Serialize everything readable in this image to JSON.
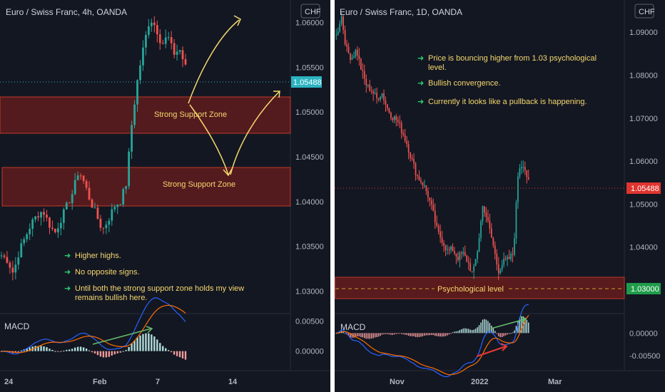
{
  "colors": {
    "background": "#131722",
    "up": "#26a69a",
    "down": "#ef5350",
    "zone_fill": "#6b1d1d",
    "zone_stroke": "#c0392b",
    "annotation": "#f5d76e",
    "bullet": "#2ecc71",
    "price_badge_left": "#2bb3c0",
    "price_badge_right": "#e0342f",
    "level_badge": "#1f9c4a",
    "macd_line": "#2962ff",
    "signal_line": "#ff6d00"
  },
  "left_chart": {
    "title": "Euro / Swiss Franc, 4h, OANDA",
    "currency": "CHF",
    "price_label": "1.05488",
    "zone1_label": "Strong Support Zone",
    "zone2_label": "Strong Support Zone",
    "notes": [
      "Higher highs.",
      "No opposite signs.",
      "Until both the strong support zone holds my view",
      "remains bullish here."
    ],
    "bullet_icon": "arrow-right-icon",
    "macd_label": "MACD"
  },
  "right_chart": {
    "title": "Euro / Swiss Franc, 1D, OANDA",
    "currency": "CHF",
    "price_label": "1.05488",
    "level_label": "1.03000",
    "zone_label": "Psychological level",
    "notes": [
      "Price is bouncing higher from 1.03 psychological",
      "level.",
      "Bullish convergence.",
      "Currently it looks like a pullback is happening."
    ],
    "bullet_icon": "arrow-right-icon",
    "macd_label": "MACD"
  },
  "chart_data": [
    {
      "type": "candlestick",
      "title": "Euro / Swiss Franc, 4h, OANDA",
      "yaxis_ticks": [
        "1.06000",
        "1.05500",
        "1.05000",
        "1.04500",
        "1.04000",
        "1.03500",
        "1.03000"
      ],
      "ylim": [
        1.0275,
        1.0625
      ],
      "xaxis_ticks": [
        "24",
        "Feb",
        "7",
        "14"
      ],
      "last_price": 1.05488,
      "zones": [
        {
          "label": "Strong Support Zone",
          "from": 1.0488,
          "to": 1.0532
        },
        {
          "label": "Strong Support Zone",
          "from": 1.0401,
          "to": 1.0446
        }
      ],
      "close_path": [
        1.034,
        1.0335,
        1.032,
        1.0345,
        1.036,
        1.0375,
        1.0385,
        1.039,
        1.0375,
        1.0365,
        1.038,
        1.0395,
        1.041,
        1.0435,
        1.042,
        1.04,
        1.0385,
        1.0368,
        1.038,
        1.0395,
        1.04,
        1.042,
        1.049,
        1.054,
        1.0575,
        1.0605,
        1.0595,
        1.0575,
        1.0585,
        1.0565,
        1.057,
        1.055
      ],
      "indicator": {
        "name": "MACD",
        "yaxis_ticks": [
          "0.00500",
          "0.00000"
        ],
        "ylim": [
          -0.003,
          0.006
        ]
      }
    },
    {
      "type": "candlestick",
      "title": "Euro / Swiss Franc, 1D, OANDA",
      "yaxis_ticks": [
        "1.09000",
        "1.08000",
        "1.07000",
        "1.06000",
        "1.05000",
        "1.04000",
        "1.03000"
      ],
      "ylim": [
        1.0245,
        1.0975
      ],
      "xaxis_ticks": [
        "Nov",
        "2022",
        "Mar"
      ],
      "last_price": 1.05488,
      "level": 1.03,
      "zones": [
        {
          "label": "Psychological level",
          "from": 1.0275,
          "to": 1.0325
        }
      ],
      "close_path": [
        1.089,
        1.094,
        1.086,
        1.084,
        1.086,
        1.081,
        1.0775,
        1.0765,
        1.0745,
        1.076,
        1.0725,
        1.0705,
        1.0695,
        1.067,
        1.064,
        1.06,
        1.0565,
        1.055,
        1.0525,
        1.0485,
        1.0435,
        1.0415,
        1.039,
        1.0395,
        1.0375,
        1.0385,
        1.0365,
        1.0335,
        1.04,
        1.05,
        1.0455,
        1.0405,
        1.0345,
        1.0365,
        1.037,
        1.0385,
        1.0585,
        1.0595,
        1.0549
      ],
      "indicator": {
        "name": "MACD",
        "yaxis_ticks": [
          "0.00000",
          "-0.00500"
        ],
        "ylim": [
          -0.008,
          0.004
        ]
      }
    }
  ]
}
